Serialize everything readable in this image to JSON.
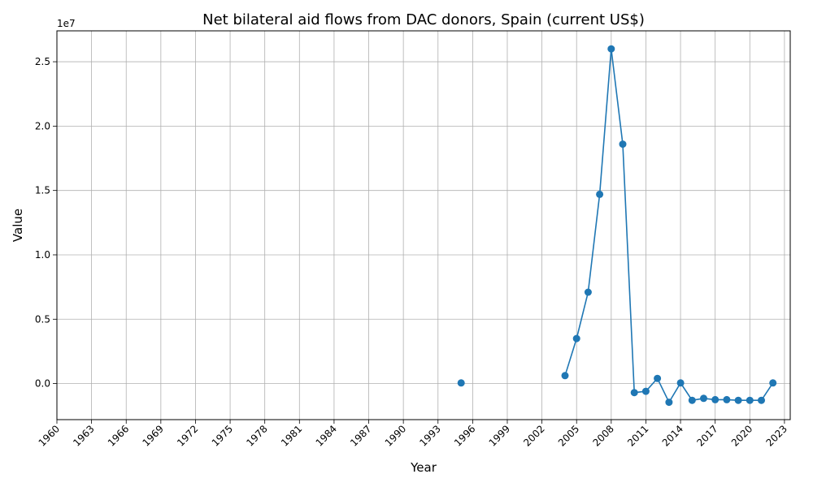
{
  "chart_data": {
    "type": "line",
    "title": "Net bilateral aid flows from DAC donors, Spain (current US$)",
    "xlabel": "Year",
    "ylabel": "Value",
    "offset_label": "1e7",
    "xlim": [
      1960,
      2023.5
    ],
    "ylim": [
      -2800000,
      27400000
    ],
    "x_ticks": [
      1960,
      1963,
      1966,
      1969,
      1972,
      1975,
      1978,
      1981,
      1984,
      1987,
      1990,
      1993,
      1996,
      1999,
      2002,
      2005,
      2008,
      2011,
      2014,
      2017,
      2020,
      2023
    ],
    "y_ticks": [
      0,
      5000000,
      10000000,
      15000000,
      20000000,
      25000000
    ],
    "y_tick_labels": [
      "0.0",
      "0.5",
      "1.0",
      "1.5",
      "2.0",
      "2.5"
    ],
    "grid": true,
    "series": [
      {
        "color": "#1f77b4",
        "points": [
          {
            "x": 1995,
            "y": 50000
          },
          {
            "x": 1996,
            "y": null
          },
          {
            "x": 2004,
            "y": 620000
          },
          {
            "x": 2005,
            "y": 3500000
          },
          {
            "x": 2006,
            "y": 7100000
          },
          {
            "x": 2007,
            "y": 14700000
          },
          {
            "x": 2008,
            "y": 26000000
          },
          {
            "x": 2009,
            "y": 18600000
          },
          {
            "x": 2010,
            "y": -700000
          },
          {
            "x": 2011,
            "y": -600000
          },
          {
            "x": 2012,
            "y": 400000
          },
          {
            "x": 2013,
            "y": -1450000
          },
          {
            "x": 2014,
            "y": 50000
          },
          {
            "x": 2015,
            "y": -1300000
          },
          {
            "x": 2016,
            "y": -1150000
          },
          {
            "x": 2017,
            "y": -1250000
          },
          {
            "x": 2018,
            "y": -1250000
          },
          {
            "x": 2019,
            "y": -1300000
          },
          {
            "x": 2020,
            "y": -1300000
          },
          {
            "x": 2021,
            "y": -1300000
          },
          {
            "x": 2022,
            "y": 50000
          }
        ]
      }
    ]
  }
}
